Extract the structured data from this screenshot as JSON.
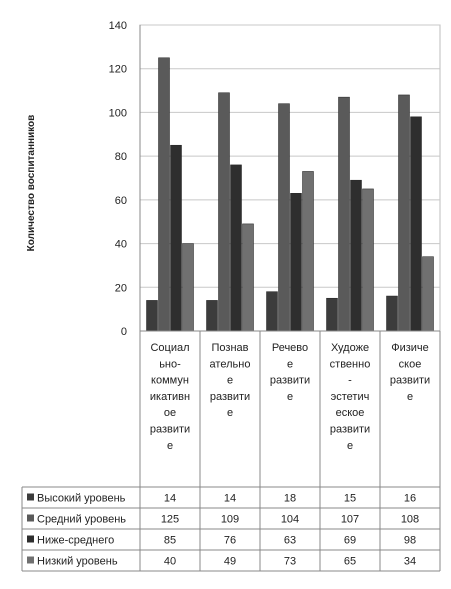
{
  "chart_data": {
    "type": "bar",
    "ylabel": "Количество воспитанников",
    "ylim": [
      0,
      140
    ],
    "yticks": [
      0,
      20,
      40,
      60,
      80,
      100,
      120,
      140
    ],
    "grid": true,
    "legend": "data-table",
    "categories": [
      [
        "Социал",
        "ьно-",
        "коммун",
        "икативн",
        "ое",
        "развити",
        "е"
      ],
      [
        "Познав",
        "ательно",
        "е",
        "развити",
        "е"
      ],
      [
        "Речево",
        "е",
        "развити",
        "е"
      ],
      [
        "Художе",
        "ственно",
        "-",
        "эстетич",
        "еское",
        "развити",
        "е"
      ],
      [
        "Физиче",
        "ское",
        "развити",
        "е"
      ]
    ],
    "series": [
      {
        "name": "Высокий уровень",
        "values": [
          14,
          14,
          18,
          15,
          16
        ],
        "color": "#3c3c3c"
      },
      {
        "name": "Средний уровень",
        "values": [
          125,
          109,
          104,
          107,
          108
        ],
        "color": "#5a5a5a"
      },
      {
        "name": "Ниже-среднего",
        "values": [
          85,
          76,
          63,
          69,
          98
        ],
        "color": "#2e2e2e"
      },
      {
        "name": "Низкий уровень",
        "values": [
          40,
          49,
          73,
          65,
          34
        ],
        "color": "#707070"
      }
    ]
  }
}
